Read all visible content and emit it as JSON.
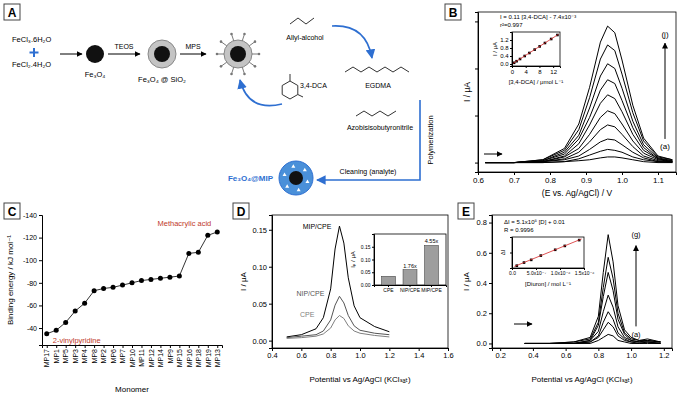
{
  "chart_data": [
    {
      "panel": "B",
      "type": "line",
      "x_label": "(E vs. Ag/AgCl) / V",
      "y_label": "I / μA",
      "color": "#000000",
      "x": [
        0.62,
        0.7,
        0.78,
        0.84,
        0.88,
        0.91,
        0.94,
        0.96,
        0.98,
        1.0,
        1.03,
        1.06,
        1.1,
        1.14
      ],
      "series": [
        {
          "values": [
            0,
            0,
            0,
            0.01,
            0.02,
            0.03,
            0.05,
            0.06,
            0.06,
            0.05,
            0.03,
            0.01,
            0,
            0
          ]
        },
        {
          "values": [
            0,
            0,
            0,
            0.01,
            0.04,
            0.08,
            0.12,
            0.14,
            0.13,
            0.11,
            0.06,
            0.03,
            0.01,
            0
          ]
        },
        {
          "values": [
            0,
            0,
            0.01,
            0.03,
            0.07,
            0.14,
            0.22,
            0.25,
            0.24,
            0.19,
            0.11,
            0.05,
            0.01,
            0.01
          ]
        },
        {
          "values": [
            0,
            0,
            0.01,
            0.04,
            0.11,
            0.22,
            0.35,
            0.4,
            0.38,
            0.3,
            0.17,
            0.07,
            0.02,
            0.01
          ]
        },
        {
          "values": [
            0,
            0,
            0.01,
            0.06,
            0.15,
            0.3,
            0.48,
            0.55,
            0.52,
            0.41,
            0.23,
            0.1,
            0.03,
            0.01
          ]
        },
        {
          "values": [
            0,
            0,
            0.01,
            0.07,
            0.2,
            0.4,
            0.63,
            0.72,
            0.68,
            0.54,
            0.3,
            0.13,
            0.04,
            0.01
          ]
        },
        {
          "values": [
            0,
            0,
            0.02,
            0.09,
            0.25,
            0.48,
            0.77,
            0.88,
            0.84,
            0.66,
            0.37,
            0.16,
            0.04,
            0.02
          ]
        },
        {
          "values": [
            0,
            0,
            0.02,
            0.11,
            0.29,
            0.58,
            0.92,
            1.05,
            1,
            0.79,
            0.44,
            0.19,
            0.05,
            0.02
          ]
        },
        {
          "values": [
            0,
            0,
            0.03,
            0.13,
            0.35,
            0.69,
            1.1,
            1.25,
            1.19,
            0.94,
            0.53,
            0.23,
            0.06,
            0.03
          ]
        },
        {
          "values": [
            0,
            0,
            0.03,
            0.15,
            0.41,
            0.8,
            1.28,
            1.45,
            1.38,
            1.09,
            0.61,
            0.26,
            0.07,
            0.03
          ]
        }
      ],
      "xlim": [
        0.6,
        1.15
      ],
      "ylim": [
        -0.1,
        1.6
      ],
      "xticks": [
        0.6,
        0.7,
        0.8,
        0.9,
        {
          "value": 1,
          "label": "1.0"
        },
        1.1
      ],
      "yticks": [
        0,
        0.5,
        1,
        1.5
      ],
      "tick_labels": "x",
      "annotations": [
        "(a)",
        "(j)"
      ],
      "inset": {
        "type": "scatter",
        "x_label": "[3,4-DCA] / μmol L⁻¹",
        "y_label": "I / μA",
        "annotations": [
          "I = 0.11 [3,4-DCA] - 7.4x10⁻³",
          "r²=0.997"
        ],
        "series": [
          {
            "type": "scatter",
            "marker": "square",
            "color": "#000000",
            "x": [
              0.61,
              1.34,
              2.34,
              3.7,
              5.07,
              6.61,
              8.07,
              9.61,
              11.43,
              13.25
            ],
            "values": [
              0.06,
              0.14,
              0.25,
              0.4,
              0.55,
              0.72,
              0.88,
              1.05,
              1.25,
              1.45
            ]
          },
          {
            "type": "line",
            "color": "#d62728",
            "x": [
              0.3,
              13.6
            ],
            "values": [
              0.03,
              1.49
            ]
          }
        ],
        "xlim": [
          0,
          14
        ],
        "ylim": [
          -0.1,
          1.6
        ],
        "xticks": [
          0,
          4,
          8,
          12
        ],
        "yticks": [
          {
            "value": 0,
            "label": "0.0"
          },
          0.4,
          0.8,
          1.2
        ]
      }
    },
    {
      "panel": "C",
      "type": "scatter",
      "x_label": "Monomer",
      "y_label": "Binding energy / kJ mol⁻¹",
      "categories": [
        "MP17",
        "MP1",
        "MP5",
        "MP3",
        "MP4",
        "MP8",
        "MP2",
        "MP6",
        "MP7",
        "MP10",
        "MP11",
        "MP12",
        "MP14",
        "MP9",
        "MP15",
        "MP16",
        "MP18",
        "MP19",
        "MP13"
      ],
      "values": [
        -35,
        -38,
        -45,
        -55,
        -62,
        -73,
        -75,
        -76,
        -78,
        -80,
        -82,
        -83,
        -84,
        -85,
        -86,
        -106,
        -107,
        -122,
        -125
      ],
      "color": "#000000",
      "marker": "circle",
      "line_style": "solid",
      "ylim": [
        -25,
        -140
      ],
      "yticks": [
        -40,
        -60,
        -80,
        -100,
        -120,
        -140
      ],
      "annotations": [
        "2-vinylpyridine",
        "Methacrylic acid"
      ]
    },
    {
      "panel": "D",
      "type": "line",
      "x_label": "Potential vs Ag/AgCl (KClₛₐₜ)",
      "y_label": "I / μA",
      "x": [
        0.5,
        0.6,
        0.7,
        0.75,
        0.8,
        0.83,
        0.86,
        0.89,
        0.92,
        0.96,
        1.0,
        1.1,
        1.2
      ],
      "series": [
        {
          "name": "MIP/CPE",
          "color": "#000000",
          "values": [
            0.005,
            0.008,
            0.016,
            0.031,
            0.07,
            0.124,
            0.155,
            0.132,
            0.085,
            0.047,
            0.031,
            0.019,
            0.012
          ]
        },
        {
          "name": "NIP/CPE",
          "color": "#555555",
          "values": [
            0.004,
            0.006,
            0.008,
            0.013,
            0.028,
            0.048,
            0.06,
            0.051,
            0.034,
            0.02,
            0.014,
            0.01,
            0.008
          ]
        },
        {
          "name": "CPE",
          "color": "#808080",
          "values": [
            0.003,
            0.004,
            0.006,
            0.009,
            0.017,
            0.028,
            0.034,
            0.03,
            0.02,
            0.013,
            0.01,
            0.007,
            0.005
          ]
        }
      ],
      "xlim": [
        0.4,
        1.6
      ],
      "ylim": [
        -0.01,
        0.17
      ],
      "xticks": [
        0.4,
        0.6,
        0.8,
        {
          "value": 1,
          "label": "1.0"
        },
        1.2,
        1.4,
        1.6
      ],
      "yticks": [
        {
          "value": 0,
          "label": "0.00"
        },
        0.05,
        {
          "value": 0.1,
          "label": "0.10"
        },
        0.15
      ],
      "inset": {
        "type": "bar",
        "y_label": "Iₚ / μA",
        "categories": [
          "CPE",
          "NIP/CPE",
          "MIP/CPE"
        ],
        "values": [
          0.034,
          0.06,
          0.155
        ],
        "color": "#9e9e9e",
        "ylim": [
          0,
          0.2
        ],
        "yticks": [
          {
            "value": 0,
            "label": "0.00"
          },
          0.05,
          {
            "value": 0.1,
            "label": "0.10"
          },
          0.15
        ],
        "annotations": [
          "1.76x",
          "4.55x"
        ]
      }
    },
    {
      "panel": "E",
      "type": "line",
      "x_label": "Potential vs Ag/AgCl (KClₛₐₜ)",
      "y_label": "I / μA",
      "color": "#000000",
      "x": [
        0.35,
        0.5,
        0.65,
        0.75,
        0.8,
        0.83,
        0.86,
        0.89,
        0.92,
        0.96,
        1.0,
        1.05,
        1.1,
        1.18
      ],
      "series": [
        {
          "values": [
            0,
            0,
            0,
            0,
            0.02,
            0.04,
            0.06,
            0.05,
            0.02,
            0.01,
            0,
            0,
            0,
            0
          ]
        },
        {
          "values": [
            0,
            0,
            0,
            0.01,
            0.04,
            0.09,
            0.14,
            0.11,
            0.05,
            0.02,
            0.01,
            0,
            0.01,
            0
          ]
        },
        {
          "values": [
            0,
            0,
            0,
            0.01,
            0.05,
            0.14,
            0.21,
            0.16,
            0.07,
            0.03,
            0.01,
            0.01,
            0.01,
            0
          ]
        },
        {
          "values": [
            0,
            0,
            0,
            0.02,
            0.08,
            0.21,
            0.32,
            0.24,
            0.11,
            0.04,
            0.02,
            0.01,
            0.01,
            0.01
          ]
        },
        {
          "values": [
            0,
            0,
            0,
            0.02,
            0.12,
            0.31,
            0.47,
            0.35,
            0.16,
            0.06,
            0.02,
            0.01,
            0.02,
            0.01
          ]
        },
        {
          "values": [
            0,
            0,
            0.01,
            0.03,
            0.14,
            0.37,
            0.57,
            0.43,
            0.2,
            0.07,
            0.03,
            0.02,
            0.02,
            0.01
          ]
        },
        {
          "values": [
            0,
            0,
            0.01,
            0.04,
            0.18,
            0.47,
            0.72,
            0.54,
            0.25,
            0.09,
            0.04,
            0.02,
            0.03,
            0.01
          ]
        }
      ],
      "xlim": [
        0.15,
        1.25
      ],
      "ylim": [
        -0.03,
        0.85
      ],
      "xticks": [
        0.2,
        0.4,
        0.6,
        0.8,
        {
          "value": 1,
          "label": "1.0"
        },
        1.2
      ],
      "yticks": [
        {
          "value": 0,
          "label": "0.0"
        },
        0.2,
        0.4,
        0.6,
        0.8
      ],
      "annotations": [
        "(a)",
        "(g)"
      ],
      "inset": {
        "type": "scatter",
        "x_label": "[Diuron] / mol L⁻¹",
        "y_label": "ΔI",
        "annotations": [
          "ΔI = 5.1x10⁵ [D] + 0.01",
          "R = 0.9996"
        ],
        "series": [
          {
            "type": "scatter",
            "marker": "square",
            "color": "#000000",
            "x": [
              1e-07,
              2.5e-07,
              4e-07,
              6e-07,
              9e-07,
              1.1e-06,
              1.4e-06
            ],
            "values": [
              0.06,
              0.14,
              0.21,
              0.32,
              0.47,
              0.57,
              0.72
            ]
          },
          {
            "type": "line",
            "color": "#d62728",
            "x": [
              5e-08,
              1.45e-06
            ],
            "values": [
              0.04,
              0.75
            ]
          }
        ],
        "xlim": [
          0,
          1.5e-06
        ],
        "ylim": [
          0,
          0.8
        ],
        "xticks": [
          {
            "value": 0,
            "label": "0.0"
          },
          {
            "value": 5e-07,
            "label": "5.0x10⁻⁷"
          },
          {
            "value": 1e-06,
            "label": "1.0x10⁻⁶"
          },
          {
            "value": 1.5e-06,
            "label": "1.5x10⁻⁶"
          }
        ],
        "yticks": [
          0,
          0.4,
          0.8
        ],
        "tick_labels": "x"
      }
    }
  ],
  "diagram": {
    "panel": "A",
    "reagents": [
      "FeCl₃.6H₂O",
      "FeCl₂.4H₂O"
    ],
    "steps": [
      "TEOS",
      "MPS"
    ],
    "products": [
      "Fe₃O₄",
      "Fe₃O₄ @ SiO₂",
      "Fe₃O₄@MIP"
    ],
    "reactants": [
      "Allyl-alcohol",
      "3,4-DCA",
      "EGDMA",
      "Azobisisobutyronitrile"
    ],
    "processes": [
      "Polymerization",
      "Cleaning (analyte)"
    ]
  }
}
